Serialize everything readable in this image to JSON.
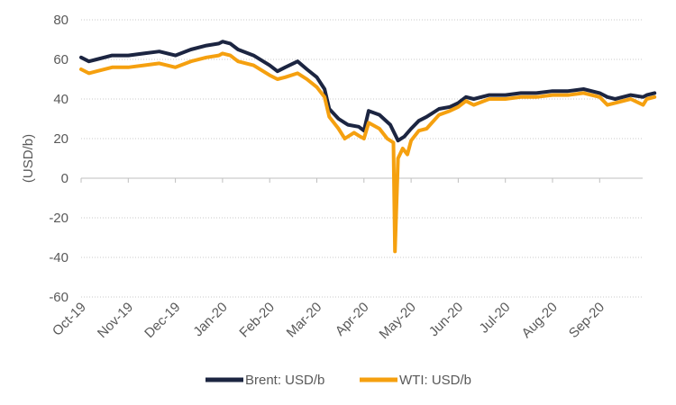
{
  "chart_data": {
    "type": "line",
    "ylabel": "(USD/b)",
    "xlabel": "",
    "ylim": [
      -60,
      80
    ],
    "y_ticks": [
      80,
      60,
      40,
      20,
      0,
      -20,
      -40,
      -60
    ],
    "x_ticks": [
      "Oct-19",
      "Nov-19",
      "Dec-19",
      "Jan-20",
      "Feb-20",
      "Mar-20",
      "Apr-20",
      "May-20",
      "Jun-20",
      "Jul-20",
      "Aug-20",
      "Sep-20"
    ],
    "grid": "horizontal-dotted",
    "legend_position": "bottom",
    "series": [
      {
        "name": "Brent: USD/b",
        "color": "#1c2541",
        "points": [
          [
            "Oct-19",
            61
          ],
          [
            "Oct-19+5d",
            59
          ],
          [
            "Oct-19+10d",
            60
          ],
          [
            "Oct-19+20d",
            62
          ],
          [
            "Nov-19",
            62
          ],
          [
            "Nov-19+10d",
            63
          ],
          [
            "Nov-19+20d",
            64
          ],
          [
            "Dec-19",
            62
          ],
          [
            "Dec-19+10d",
            65
          ],
          [
            "Dec-19+20d",
            67
          ],
          [
            "Dec-19+28d",
            68
          ],
          [
            "Jan-20",
            69
          ],
          [
            "Jan-20+5d",
            68
          ],
          [
            "Jan-20+10d",
            65
          ],
          [
            "Jan-20+20d",
            62
          ],
          [
            "Feb-20",
            57
          ],
          [
            "Feb-20+5d",
            54
          ],
          [
            "Feb-20+10d",
            56
          ],
          [
            "Feb-20+18d",
            59
          ],
          [
            "Feb-20+24d",
            55
          ],
          [
            "Mar-20",
            51
          ],
          [
            "Mar-20+5d",
            45
          ],
          [
            "Mar-20+8d",
            35
          ],
          [
            "Mar-20+14d",
            30
          ],
          [
            "Mar-20+20d",
            27
          ],
          [
            "Mar-20+27d",
            26
          ],
          [
            "Apr-20",
            24
          ],
          [
            "Apr-20+3d",
            34
          ],
          [
            "Apr-20+10d",
            32
          ],
          [
            "Apr-20+17d",
            27
          ],
          [
            "Apr-20+22d",
            19
          ],
          [
            "Apr-20+26d",
            21
          ],
          [
            "May-20",
            25
          ],
          [
            "May-20+5d",
            29
          ],
          [
            "May-20+10d",
            31
          ],
          [
            "May-20+18d",
            35
          ],
          [
            "May-20+25d",
            36
          ],
          [
            "Jun-20",
            38
          ],
          [
            "Jun-20+5d",
            41
          ],
          [
            "Jun-20+10d",
            40
          ],
          [
            "Jun-20+20d",
            42
          ],
          [
            "Jul-20",
            42
          ],
          [
            "Jul-20+10d",
            43
          ],
          [
            "Jul-20+20d",
            43
          ],
          [
            "Aug-20",
            44
          ],
          [
            "Aug-20+10d",
            44
          ],
          [
            "Aug-20+20d",
            45
          ],
          [
            "Sep-20",
            43
          ],
          [
            "Sep-20+5d",
            41
          ],
          [
            "Sep-20+10d",
            40
          ],
          [
            "Sep-20+20d",
            42
          ],
          [
            "Sep-20+28d",
            41
          ],
          [
            "Oct-20",
            42
          ],
          [
            "Oct-20+5d",
            43
          ]
        ]
      },
      {
        "name": "WTI: USD/b",
        "color": "#f5a00f",
        "points": [
          [
            "Oct-19",
            55
          ],
          [
            "Oct-19+5d",
            53
          ],
          [
            "Oct-19+10d",
            54
          ],
          [
            "Oct-19+20d",
            56
          ],
          [
            "Nov-19",
            56
          ],
          [
            "Nov-19+10d",
            57
          ],
          [
            "Nov-19+20d",
            58
          ],
          [
            "Dec-19",
            56
          ],
          [
            "Dec-19+10d",
            59
          ],
          [
            "Dec-19+20d",
            61
          ],
          [
            "Dec-19+28d",
            62
          ],
          [
            "Jan-20",
            63
          ],
          [
            "Jan-20+5d",
            62
          ],
          [
            "Jan-20+10d",
            59
          ],
          [
            "Jan-20+20d",
            57
          ],
          [
            "Feb-20",
            52
          ],
          [
            "Feb-20+5d",
            50
          ],
          [
            "Feb-20+10d",
            51
          ],
          [
            "Feb-20+18d",
            53
          ],
          [
            "Feb-20+24d",
            50
          ],
          [
            "Mar-20",
            46
          ],
          [
            "Mar-20+5d",
            41
          ],
          [
            "Mar-20+8d",
            31
          ],
          [
            "Mar-20+14d",
            25
          ],
          [
            "Mar-20+18d",
            20
          ],
          [
            "Mar-20+24d",
            23
          ],
          [
            "Mar-20+28d",
            21
          ],
          [
            "Apr-20",
            20
          ],
          [
            "Apr-20+3d",
            28
          ],
          [
            "Apr-20+10d",
            25
          ],
          [
            "Apr-20+15d",
            20
          ],
          [
            "Apr-20+19d",
            18
          ],
          [
            "Apr-20+20d",
            -37
          ],
          [
            "Apr-20+22d",
            10
          ],
          [
            "Apr-20+25d",
            15
          ],
          [
            "Apr-20+28d",
            12
          ],
          [
            "May-20",
            19
          ],
          [
            "May-20+5d",
            24
          ],
          [
            "May-20+10d",
            25
          ],
          [
            "May-20+18d",
            32
          ],
          [
            "May-20+25d",
            34
          ],
          [
            "Jun-20",
            36
          ],
          [
            "Jun-20+5d",
            39
          ],
          [
            "Jun-20+10d",
            37
          ],
          [
            "Jun-20+20d",
            40
          ],
          [
            "Jul-20",
            40
          ],
          [
            "Jul-20+10d",
            41
          ],
          [
            "Jul-20+20d",
            41
          ],
          [
            "Aug-20",
            42
          ],
          [
            "Aug-20+10d",
            42
          ],
          [
            "Aug-20+20d",
            43
          ],
          [
            "Sep-20",
            41
          ],
          [
            "Sep-20+5d",
            37
          ],
          [
            "Sep-20+10d",
            38
          ],
          [
            "Sep-20+20d",
            40
          ],
          [
            "Sep-20+28d",
            37
          ],
          [
            "Oct-20",
            40
          ],
          [
            "Oct-20+5d",
            41
          ]
        ]
      }
    ]
  }
}
